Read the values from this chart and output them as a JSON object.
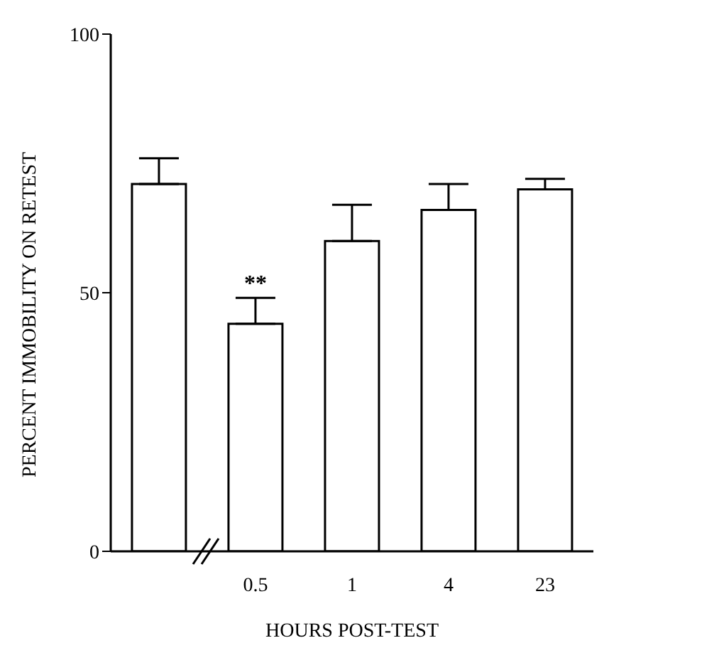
{
  "chart_data": {
    "type": "bar",
    "xlabel": "HOURS POST-TEST",
    "ylabel": "PERCENT IMMOBILITY ON RETEST",
    "categories": [
      null,
      "0.5",
      "1",
      "4",
      "23"
    ],
    "values": [
      71,
      44,
      60,
      66,
      70
    ],
    "errors": [
      [
        71,
        76
      ],
      [
        44,
        49
      ],
      [
        60,
        67
      ],
      [
        66,
        71
      ],
      [
        70,
        72
      ]
    ],
    "color": "#ffffff",
    "ylim": [
      0,
      100
    ],
    "yticks": [
      0,
      50,
      100
    ],
    "grid": false,
    "annotations": [
      {
        "text": "**",
        "x": "0.5",
        "y": 49
      }
    ]
  }
}
